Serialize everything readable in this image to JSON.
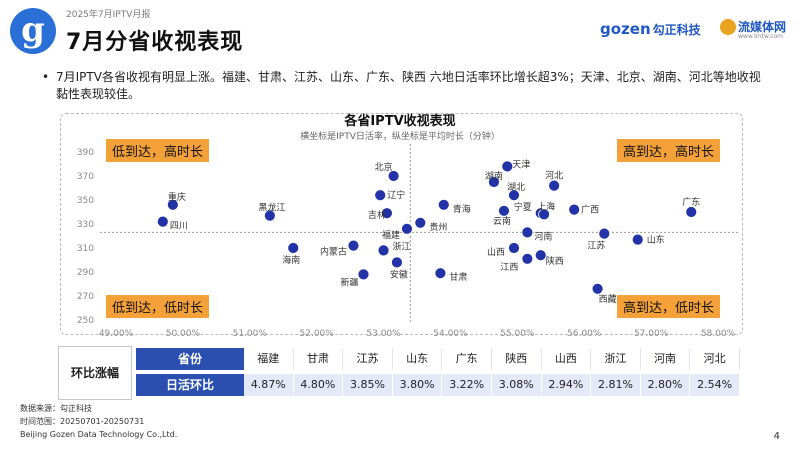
{
  "header": {
    "report_label": "2025年7月IPTV月报",
    "title": "7月分省收视表现",
    "brand_gozen": "gozen",
    "brand_gozen_cn": "勾正科技",
    "brand_lmtw": "流媒体网",
    "brand_lmtw_url": "www.lmtw.com"
  },
  "summary": {
    "bullet": "•",
    "text": "7月IPTV各省收视有明显上涨。福建、甘肃、江苏、山东、广东、陕西 六地日活率环比增长超3%；天津、北京、湖南、河北等地收视黏性表现较佳。"
  },
  "quadrants": {
    "top_left": "低到达，高时长",
    "top_right": "高到达，高时长",
    "bottom_left": "低到达，低时长",
    "bottom_right": "高到达，低时长"
  },
  "chart_data": {
    "type": "scatter",
    "title": "各省IPTV收视表现",
    "subtitle": "横坐标是IPTV日活率，纵坐标是平均时长（分钟）",
    "xlim": [
      49.0,
      58.0
    ],
    "ylim": [
      250,
      390
    ],
    "x_ticks": [
      "49.00%",
      "50.00%",
      "51.00%",
      "52.00%",
      "53.00%",
      "54.00%",
      "55.00%",
      "56.00%",
      "57.00%",
      "58.00%"
    ],
    "y_ticks": [
      "250",
      "270",
      "290",
      "310",
      "330",
      "350",
      "370",
      "390"
    ],
    "reference_lines": {
      "x": 53.4,
      "y": 323
    },
    "marker_color": "#2233a8",
    "points": [
      {
        "name": "重庆",
        "x": 49.85,
        "y": 346
      },
      {
        "name": "四川",
        "x": 49.7,
        "y": 332
      },
      {
        "name": "黑龙江",
        "x": 51.3,
        "y": 337
      },
      {
        "name": "海南",
        "x": 51.65,
        "y": 310
      },
      {
        "name": "内蒙古",
        "x": 52.55,
        "y": 312
      },
      {
        "name": "新疆",
        "x": 52.7,
        "y": 288
      },
      {
        "name": "北京",
        "x": 53.15,
        "y": 370
      },
      {
        "name": "辽宁",
        "x": 52.95,
        "y": 354
      },
      {
        "name": "吉林",
        "x": 53.05,
        "y": 339
      },
      {
        "name": "浙江",
        "x": 53.0,
        "y": 308
      },
      {
        "name": "安徽",
        "x": 53.2,
        "y": 298
      },
      {
        "name": "福建",
        "x": 53.35,
        "y": 326
      },
      {
        "name": "贵州",
        "x": 53.55,
        "y": 331
      },
      {
        "name": "青海",
        "x": 53.9,
        "y": 346
      },
      {
        "name": "甘肃",
        "x": 53.85,
        "y": 289
      },
      {
        "name": "天津",
        "x": 54.85,
        "y": 378
      },
      {
        "name": "湖南",
        "x": 54.65,
        "y": 365
      },
      {
        "name": "湖北",
        "x": 54.95,
        "y": 354
      },
      {
        "name": "云南",
        "x": 54.8,
        "y": 341
      },
      {
        "name": "宁夏",
        "x": 55.35,
        "y": 339
      },
      {
        "name": "河北",
        "x": 55.55,
        "y": 362
      },
      {
        "name": "上海",
        "x": 55.4,
        "y": 338
      },
      {
        "name": "广西",
        "x": 55.85,
        "y": 342
      },
      {
        "name": "河南",
        "x": 55.15,
        "y": 323
      },
      {
        "name": "山西",
        "x": 54.95,
        "y": 310
      },
      {
        "name": "江西",
        "x": 55.15,
        "y": 301
      },
      {
        "name": "陕西",
        "x": 55.35,
        "y": 304
      },
      {
        "name": "江苏",
        "x": 56.3,
        "y": 322
      },
      {
        "name": "山东",
        "x": 56.8,
        "y": 317
      },
      {
        "name": "广东",
        "x": 57.6,
        "y": 340
      },
      {
        "name": "西藏",
        "x": 56.2,
        "y": 276
      }
    ]
  },
  "table": {
    "corner_label": "环比涨幅",
    "header_label": "省份",
    "row_label": "日活环比",
    "provinces": [
      "福建",
      "甘肃",
      "江苏",
      "山东",
      "广东",
      "陕西",
      "山西",
      "浙江",
      "河南",
      "河北"
    ],
    "values": [
      "4.87%",
      "4.80%",
      "3.85%",
      "3.80%",
      "3.22%",
      "3.08%",
      "2.94%",
      "2.81%",
      "2.80%",
      "2.54%"
    ]
  },
  "footer": {
    "source": "数据来源：勾正科技",
    "range": "时间范围：20250701-20250731",
    "company": "Beijing Gozen Data Technology Co.,Ltd.",
    "page_number": "4"
  }
}
